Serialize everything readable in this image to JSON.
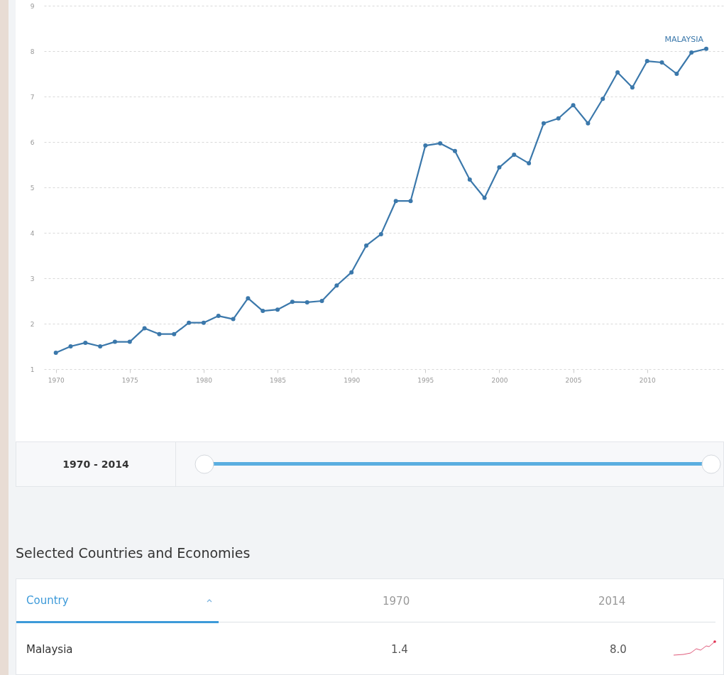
{
  "chart_data": {
    "type": "line",
    "x": [
      1970,
      1971,
      1972,
      1973,
      1974,
      1975,
      1976,
      1977,
      1978,
      1979,
      1980,
      1981,
      1982,
      1983,
      1984,
      1985,
      1986,
      1987,
      1988,
      1989,
      1990,
      1991,
      1992,
      1993,
      1994,
      1995,
      1996,
      1997,
      1998,
      1999,
      2000,
      2001,
      2002,
      2003,
      2004,
      2005,
      2006,
      2007,
      2008,
      2009,
      2010,
      2011,
      2012,
      2013,
      2014
    ],
    "series": [
      {
        "name": "MALAYSIA",
        "color": "#3b78ab",
        "values": [
          1.36,
          1.5,
          1.58,
          1.5,
          1.6,
          1.6,
          1.9,
          1.77,
          1.77,
          2.02,
          2.02,
          2.17,
          2.1,
          2.56,
          2.28,
          2.31,
          2.48,
          2.47,
          2.5,
          2.84,
          3.13,
          3.72,
          3.97,
          4.7,
          4.7,
          5.92,
          5.97,
          5.8,
          5.17,
          4.77,
          5.44,
          5.72,
          5.53,
          6.41,
          6.52,
          6.81,
          6.41,
          6.95,
          7.53,
          7.2,
          7.78,
          7.75,
          7.5,
          7.97,
          8.05
        ]
      }
    ],
    "xlim": [
      1969.2,
      2015.2
    ],
    "xticks": [
      1970,
      1975,
      1980,
      1985,
      1990,
      1995,
      2000,
      2005,
      2010
    ],
    "ylim": [
      1,
      9
    ],
    "yticks": [
      1,
      2,
      3,
      4,
      5,
      6,
      7,
      8,
      9
    ],
    "grid": "y",
    "marker": "circle",
    "line_style": "solid",
    "annotations": [
      "1970 - 2014",
      "Selected Countries and Economies",
      "Country",
      "1970",
      "2014",
      "Malaysia",
      "1.4",
      "8.0"
    ]
  }
}
